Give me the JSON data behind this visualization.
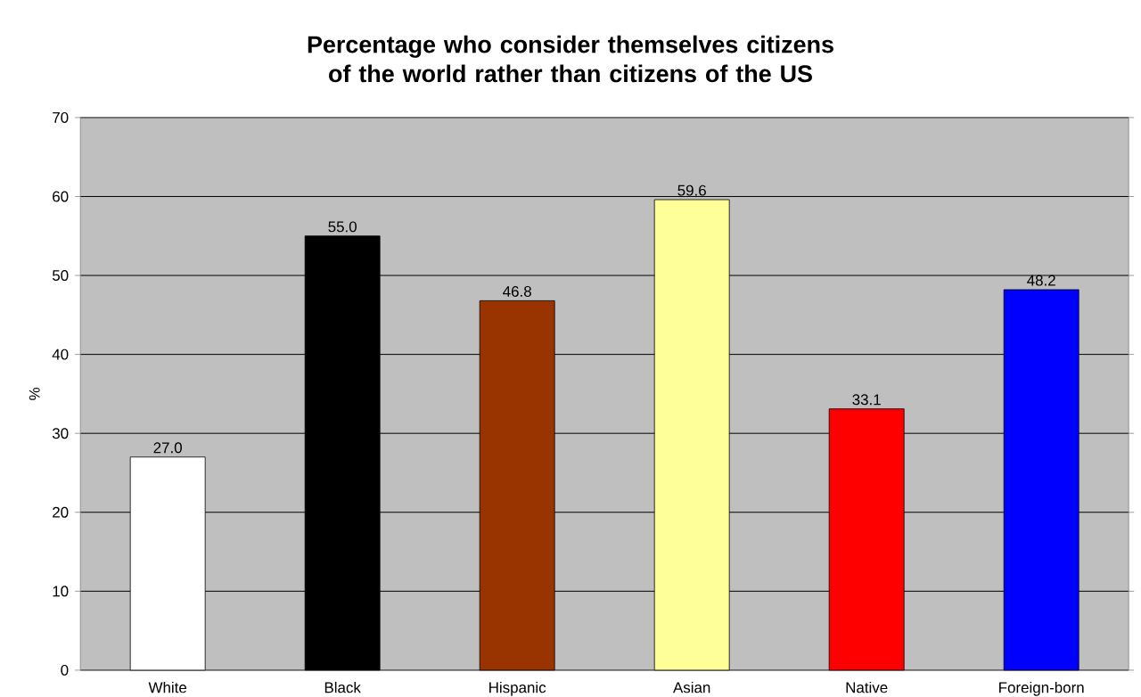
{
  "chart_data": {
    "type": "bar",
    "title": "Percentage who consider themselves citizens of the world rather than citizens of the US",
    "ylabel": "%",
    "categories": [
      "White",
      "Black",
      "Hispanic",
      "Asian",
      "Native",
      "Foreign-born"
    ],
    "values": [
      27.0,
      55.0,
      46.8,
      59.6,
      33.1,
      48.2
    ],
    "value_labels": [
      "27.0",
      "55.0",
      "46.8",
      "59.6",
      "33.1",
      "48.2"
    ],
    "colors": [
      "#ffffff",
      "#000000",
      "#993300",
      "#ffff99",
      "#ff0000",
      "#0000ff"
    ],
    "ylim": [
      0,
      70
    ],
    "yticks": [
      0,
      10,
      20,
      30,
      40,
      50,
      60,
      70
    ],
    "grid": "y"
  }
}
